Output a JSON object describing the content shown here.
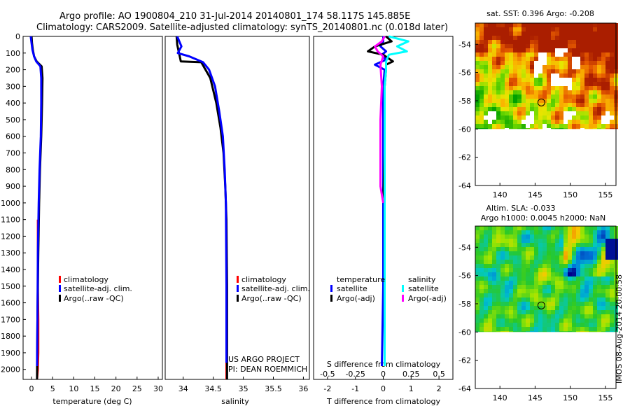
{
  "title": {
    "line1": "Argo profile: AO 1900804_210 31-Jul-2014 20140801_174 58.117S 145.885E",
    "line2": "Climatology: CARS2009. Satellite-adjusted climatology: synTS_20140801.nc (0.018d later)"
  },
  "colors": {
    "clim": "#ff0000",
    "sat": "#0000ff",
    "argo": "#000000",
    "sal_sat": "#00ffff",
    "sal_argo": "#ff00ff"
  },
  "chart_data": [
    {
      "id": "temperature",
      "type": "line",
      "xlabel": "temperature (deg C)",
      "ylabel": "",
      "xlim": [
        -2,
        31
      ],
      "ylim": [
        2060,
        0
      ],
      "xticks": [
        0,
        5,
        10,
        15,
        20,
        25,
        30
      ],
      "yticks": [
        0,
        100,
        200,
        300,
        400,
        500,
        600,
        700,
        800,
        900,
        1000,
        1100,
        1200,
        1300,
        1400,
        1500,
        1600,
        1700,
        1800,
        1900,
        2000
      ],
      "legend": [
        "climatology",
        "satellite-adj. clim.",
        "Argo(..raw -QC)"
      ],
      "series": [
        {
          "name": "climatology",
          "color": "#ff0000",
          "x": [
            1.5,
            1.5,
            1.5,
            1.6,
            1.6,
            1.5,
            1.4,
            1.3
          ],
          "y": [
            1100,
            1300,
            1500,
            1700,
            1900,
            2000,
            2030,
            2060
          ]
        },
        {
          "name": "Argo(..raw -QC)",
          "color": "#000000",
          "x": [
            0.0,
            0.1,
            0.3,
            0.6,
            1.2,
            2.4,
            2.6,
            2.5,
            2.3,
            2.0,
            1.8,
            1.6,
            1.4,
            1.3
          ],
          "y": [
            0,
            40,
            80,
            120,
            150,
            180,
            250,
            400,
            600,
            800,
            1000,
            1300,
            1700,
            2060
          ]
        },
        {
          "name": "satellite-adj. clim.",
          "color": "#0000ff",
          "x": [
            -0.2,
            0.0,
            0.2,
            0.6,
            1.1,
            2.1,
            2.3,
            2.3,
            2.2,
            1.9,
            1.7,
            1.5,
            1.4,
            1.3
          ],
          "y": [
            0,
            40,
            80,
            120,
            150,
            180,
            250,
            400,
            600,
            800,
            1000,
            1300,
            1700,
            1980
          ]
        }
      ]
    },
    {
      "id": "salinity",
      "type": "line",
      "xlabel": "salinity",
      "ylabel": "",
      "xlim": [
        33.7,
        36.1
      ],
      "ylim": [
        2060,
        0
      ],
      "xticks": [
        34,
        34.5,
        35,
        35.5,
        36
      ],
      "legend": [
        "climatology",
        "satellite-adj. clim.",
        "Argo(..raw -QC)"
      ],
      "annotation": [
        "US ARGO PROJECT",
        "PI: DEAN ROEMMICH"
      ],
      "series": [
        {
          "name": "climatology",
          "color": "#ff0000",
          "x": [
            34.72,
            34.72,
            34.72
          ],
          "y": [
            1800,
            1950,
            2060
          ]
        },
        {
          "name": "Argo(..raw -QC)",
          "color": "#000000",
          "x": [
            33.89,
            33.9,
            33.96,
            34.3,
            34.45,
            34.55,
            34.62,
            34.67,
            34.7,
            34.72,
            34.73,
            34.73
          ],
          "y": [
            0,
            50,
            150,
            155,
            250,
            400,
            550,
            700,
            900,
            1100,
            1500,
            2060
          ]
        },
        {
          "name": "satellite-adj. clim.",
          "color": "#0000ff",
          "x": [
            33.9,
            33.97,
            33.91,
            34.1,
            34.33,
            34.43,
            34.53,
            34.6,
            34.66,
            34.69,
            34.71,
            34.72,
            34.72
          ],
          "y": [
            0,
            60,
            100,
            120,
            155,
            200,
            300,
            450,
            600,
            800,
            1000,
            1500,
            1960
          ]
        }
      ]
    },
    {
      "id": "difference",
      "type": "line",
      "xlabel": "T difference from climatology",
      "xlabel_top": "S difference from climatology",
      "xlim": [
        -2.5,
        2.5
      ],
      "ylim": [
        2060,
        0
      ],
      "xticks": [
        -2,
        -1,
        0,
        1,
        2
      ],
      "xticks_top": [
        "-0.5",
        "-0.25",
        "0",
        "0.25",
        "0.5"
      ],
      "legend_headers": [
        "temperature",
        "salinity"
      ],
      "legend": [
        [
          "satellite",
          "Argo(-adj)"
        ],
        [
          "satellite",
          "Argo(-adj)"
        ]
      ],
      "series": [
        {
          "name": "satellite",
          "color": "#0000ff",
          "x": [
            0,
            0,
            -0.1,
            0.1,
            -0.05,
            0.1,
            -0.3,
            0.05,
            0,
            0,
            0,
            -0.05
          ],
          "y": [
            0,
            30,
            60,
            90,
            110,
            140,
            170,
            200,
            300,
            700,
            1500,
            1980
          ]
        },
        {
          "name": "Argo(-adj)",
          "color": "#000000",
          "x": [
            0.1,
            0.3,
            -0.3,
            -0.55,
            0.0,
            0.35,
            0.1,
            0.1,
            0.05,
            0.05,
            0.0
          ],
          "y": [
            0,
            30,
            60,
            90,
            110,
            150,
            170,
            200,
            300,
            700,
            1000
          ]
        },
        {
          "name": "satellite",
          "color": "#00ffff",
          "x": [
            0.2,
            0.9,
            0.5,
            0.85,
            0.2,
            0.1,
            0.1,
            0.05,
            0.05,
            0.05,
            0.05,
            0.05
          ],
          "y": [
            0,
            30,
            60,
            90,
            110,
            150,
            200,
            300,
            600,
            1000,
            1500,
            1980
          ]
        },
        {
          "name": "Argo(-adj)",
          "color": "#ff00ff",
          "x": [
            0.05,
            -0.05,
            -0.3,
            -0.2,
            0.0,
            -0.1,
            -0.05,
            -0.1,
            -0.1,
            -0.1,
            0.0
          ],
          "y": [
            0,
            30,
            60,
            90,
            120,
            170,
            300,
            500,
            700,
            900,
            1000
          ]
        }
      ]
    },
    {
      "id": "sst_map",
      "type": "heatmap",
      "title": "sat. SST: 0.396 Argo: -0.208",
      "xlim": [
        136.5,
        156.5
      ],
      "ylim": [
        -64,
        -52.5
      ],
      "xticks": [
        140,
        145,
        150,
        155
      ],
      "yticks": [
        -54,
        -56,
        -58,
        -60,
        -62,
        -64
      ],
      "marker": {
        "lon": 145.885,
        "lat": -58.117
      }
    },
    {
      "id": "sla_map",
      "type": "heatmap",
      "title": [
        "Altim. SLA: -0.033",
        "Argo h1000: 0.0045 h2000: NaN"
      ],
      "xlim": [
        136.5,
        156.5
      ],
      "ylim": [
        -64,
        -52.5
      ],
      "xticks": [
        140,
        145,
        150,
        155
      ],
      "yticks": [
        -54,
        -56,
        -58,
        -60,
        -62,
        -64
      ],
      "marker": {
        "lon": 145.885,
        "lat": -58.117
      }
    }
  ],
  "watermark": "IMOS 08-Aug-2014 20:00:58"
}
